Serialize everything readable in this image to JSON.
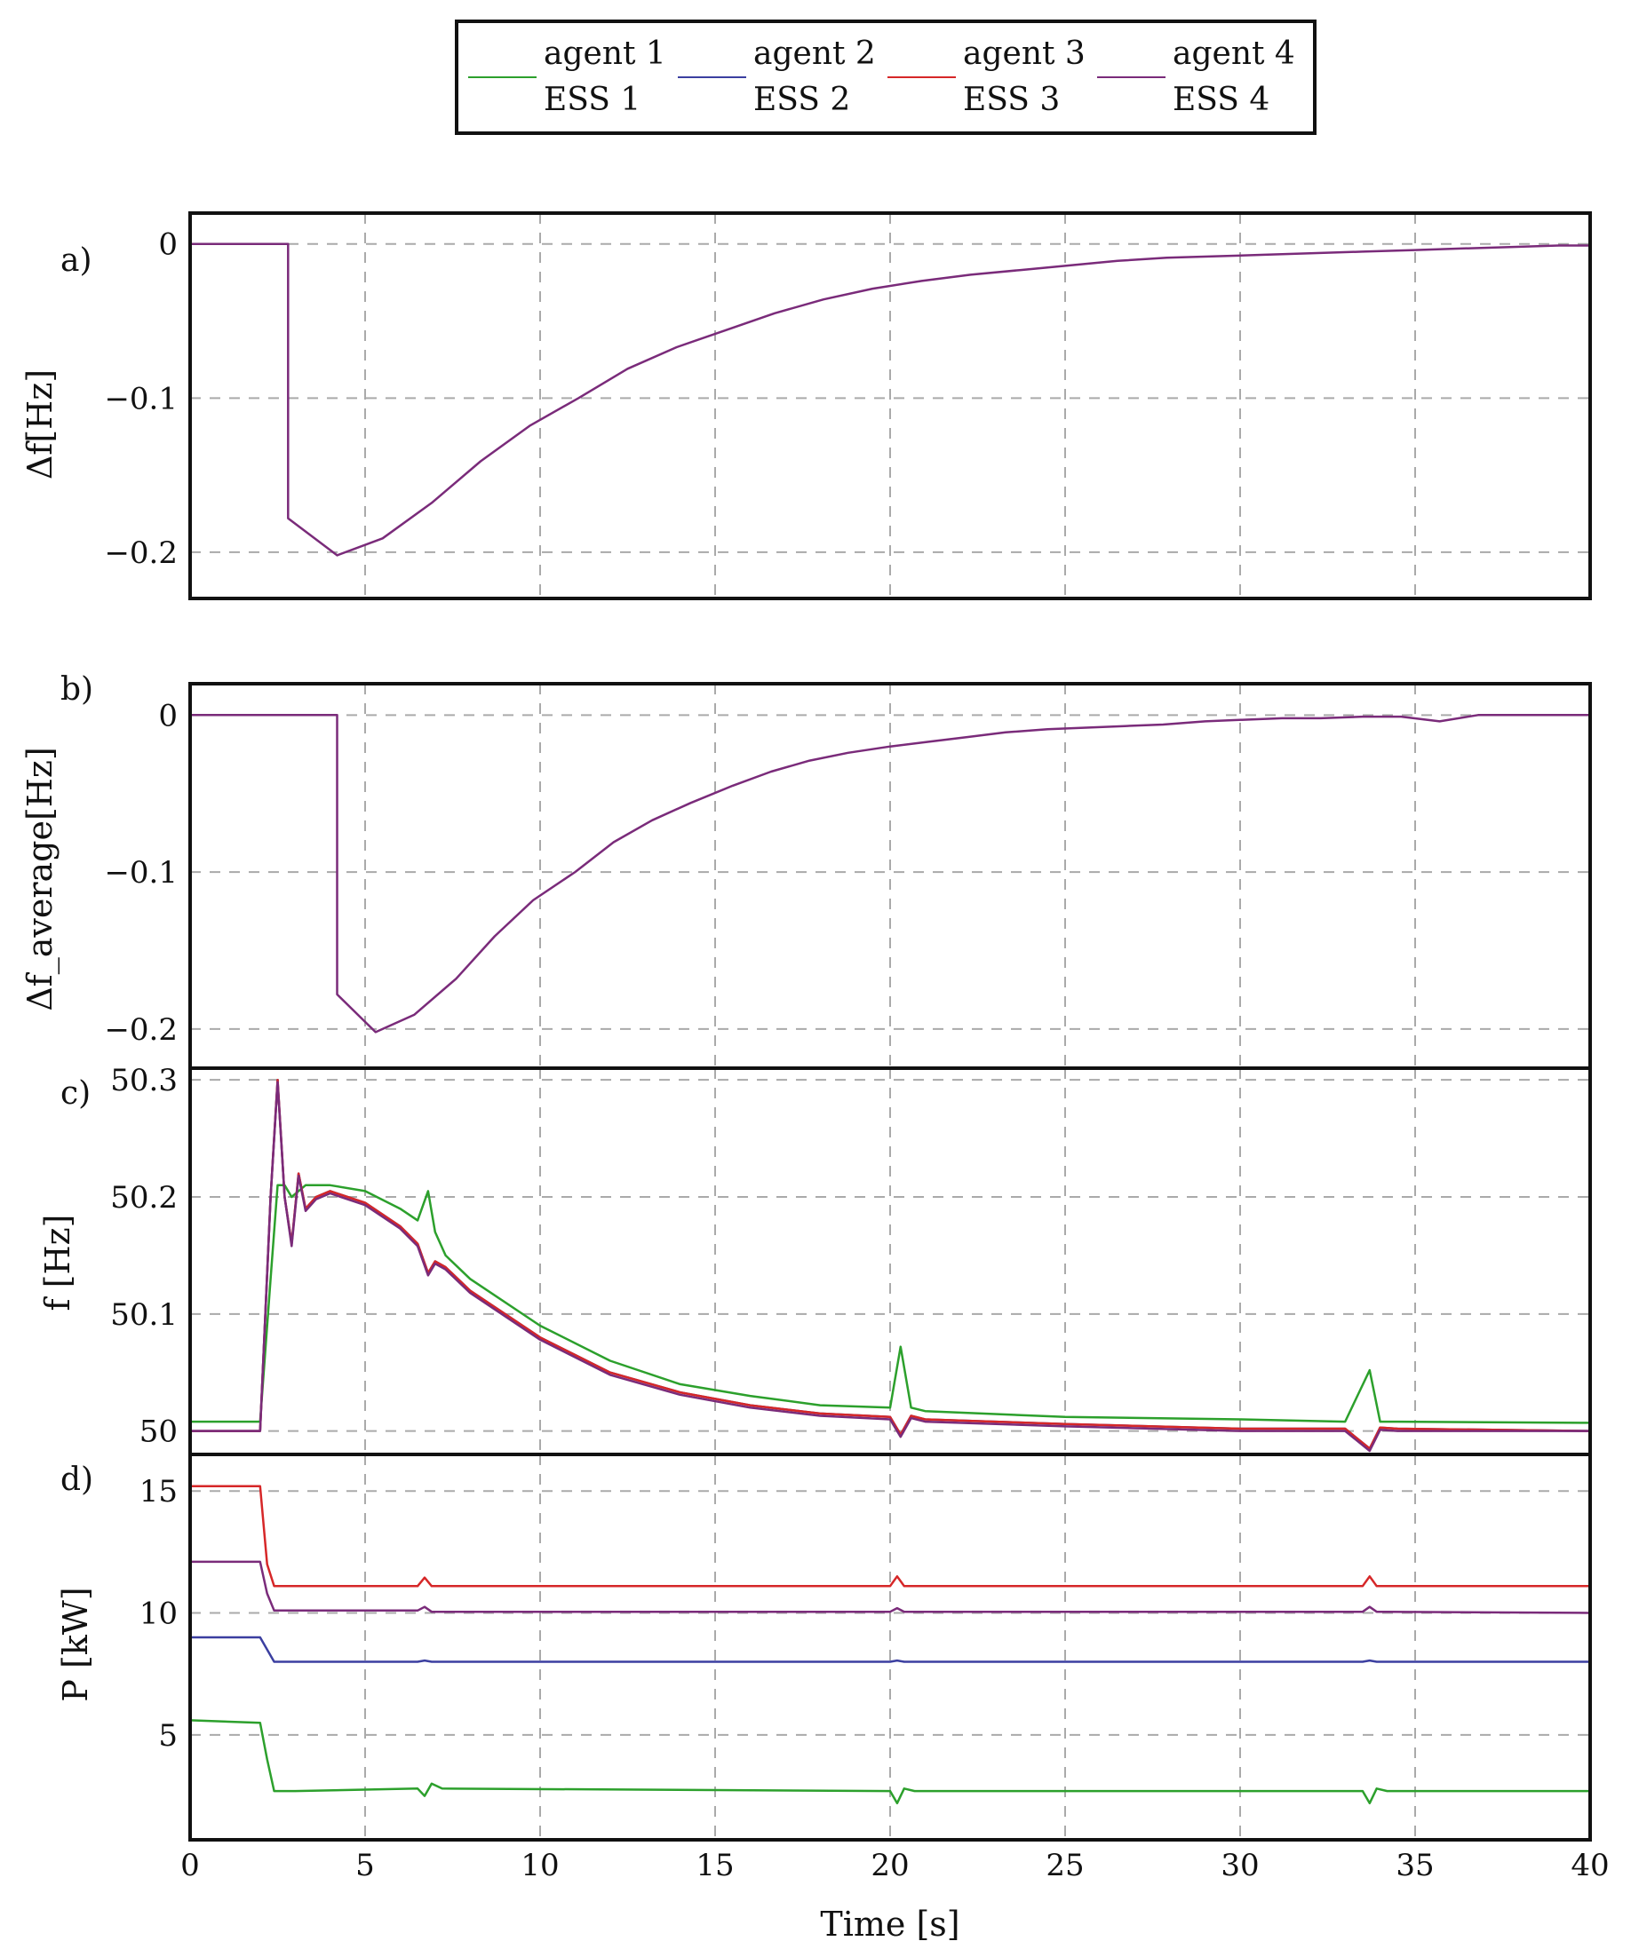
{
  "legend": {
    "entries": [
      {
        "line1": "agent 1",
        "line2": "ESS 1",
        "color": "#2ca02c"
      },
      {
        "line1": "agent 2",
        "line2": "ESS 2",
        "color": "#3b3fa0"
      },
      {
        "line1": "agent 3",
        "line2": "ESS 3",
        "color": "#d62728"
      },
      {
        "line1": "agent 4",
        "line2": "ESS 4",
        "color": "#7a2b7a"
      }
    ]
  },
  "xaxis": {
    "label": "Time [s]",
    "ticks": [
      "0",
      "5",
      "10",
      "15",
      "20",
      "25",
      "30",
      "35",
      "40"
    ]
  },
  "chart_data": [
    {
      "panel": "a)",
      "type": "line",
      "ylabel": "Δf[Hz]",
      "xlim": [
        0,
        40
      ],
      "ylim": [
        -0.23,
        0.02
      ],
      "yticks": [
        0,
        -0.1,
        -0.2
      ],
      "ytick_labels": [
        "0",
        "−0.1",
        "−0.2"
      ],
      "x": [
        0,
        2.8,
        2.8,
        4.2,
        5.5,
        6.9,
        8.3,
        9.7,
        11.1,
        12.5,
        13.9,
        15.3,
        16.7,
        18.1,
        19.5,
        20.9,
        22.3,
        23.7,
        25.1,
        26.5,
        27.9,
        29.3,
        30.7,
        32.1,
        33.5,
        34.9,
        36.3,
        37.7,
        39.1,
        40
      ],
      "series": [
        {
          "name": "agent 4",
          "values": [
            0,
            0,
            -0.178,
            -0.202,
            -0.191,
            -0.168,
            -0.141,
            -0.118,
            -0.1,
            -0.081,
            -0.067,
            -0.056,
            -0.045,
            -0.036,
            -0.029,
            -0.024,
            -0.02,
            -0.017,
            -0.014,
            -0.011,
            -0.009,
            -0.008,
            -0.007,
            -0.006,
            -0.005,
            -0.004,
            -0.003,
            -0.002,
            -0.001,
            -0.001
          ]
        }
      ]
    },
    {
      "panel": "b)",
      "type": "line",
      "ylabel": "Δf_average[Hz]",
      "xlim": [
        0,
        40
      ],
      "ylim": [
        -0.225,
        0.02
      ],
      "yticks": [
        0,
        -0.1,
        -0.2
      ],
      "ytick_labels": [
        "0",
        "−0.1",
        "−0.2"
      ],
      "x": [
        0,
        4.2,
        4.2,
        5.3,
        6.4,
        7.6,
        8.7,
        9.8,
        11.0,
        12.1,
        13.2,
        14.3,
        15.5,
        16.6,
        17.7,
        18.8,
        20.0,
        21.1,
        22.2,
        23.3,
        24.5,
        25.6,
        26.7,
        27.8,
        29.0,
        30.1,
        31.2,
        32.3,
        33.5,
        34.6,
        35.7,
        36.8,
        38.0,
        40
      ],
      "series": [
        {
          "name": "agent 4",
          "values": [
            0,
            0,
            -0.178,
            -0.202,
            -0.191,
            -0.168,
            -0.141,
            -0.118,
            -0.1,
            -0.081,
            -0.067,
            -0.056,
            -0.045,
            -0.036,
            -0.029,
            -0.024,
            -0.02,
            -0.017,
            -0.014,
            -0.011,
            -0.009,
            -0.008,
            -0.007,
            -0.006,
            -0.004,
            -0.003,
            -0.002,
            -0.002,
            -0.001,
            -0.001,
            -0.004,
            0,
            0,
            0
          ]
        }
      ]
    },
    {
      "panel": "c)",
      "type": "line",
      "ylabel": "f [Hz]",
      "xlim": [
        0,
        40
      ],
      "ylim": [
        49.98,
        50.31
      ],
      "yticks": [
        50,
        50.1,
        50.2,
        50.3
      ],
      "ytick_labels": [
        "50",
        "50.1",
        "50.2",
        "50.3"
      ],
      "x": [
        0,
        2.0,
        2.3,
        2.5,
        2.7,
        2.9,
        3.1,
        3.3,
        3.6,
        4.0,
        5.0,
        6.0,
        6.5,
        6.8,
        7.0,
        7.3,
        8.0,
        10.0,
        12.0,
        14.0,
        16.0,
        18.0,
        20.0,
        20.3,
        20.6,
        21.0,
        25.0,
        30.0,
        33.0,
        33.7,
        34.0,
        34.5,
        40.0
      ],
      "series": [
        {
          "name": "agent 1",
          "values": [
            50.008,
            50.008,
            50.13,
            50.21,
            50.21,
            50.2,
            50.205,
            50.21,
            50.21,
            50.21,
            50.205,
            50.19,
            50.18,
            50.205,
            50.17,
            50.15,
            50.13,
            50.09,
            50.06,
            50.04,
            50.03,
            50.022,
            50.02,
            50.072,
            50.02,
            50.017,
            50.012,
            50.01,
            50.008,
            50.052,
            50.008,
            50.008,
            50.007
          ]
        },
        {
          "name": "agent 2",
          "values": [
            50.0,
            50.0,
            50.2,
            50.3,
            50.2,
            50.16,
            50.22,
            50.19,
            50.2,
            50.205,
            50.195,
            50.175,
            50.16,
            50.135,
            50.145,
            50.14,
            50.12,
            50.08,
            50.05,
            50.033,
            50.022,
            50.015,
            50.012,
            49.997,
            50.013,
            50.01,
            50.006,
            50.002,
            50.002,
            49.985,
            50.003,
            50.002,
            50.0
          ]
        },
        {
          "name": "agent 3",
          "values": [
            50.0,
            50.0,
            50.2,
            50.3,
            50.2,
            50.16,
            50.22,
            50.19,
            50.2,
            50.205,
            50.195,
            50.175,
            50.16,
            50.135,
            50.145,
            50.14,
            50.12,
            50.08,
            50.05,
            50.033,
            50.022,
            50.015,
            50.012,
            49.997,
            50.013,
            50.01,
            50.006,
            50.002,
            50.002,
            49.985,
            50.003,
            50.002,
            50.0
          ]
        },
        {
          "name": "agent 4",
          "values": [
            50.0,
            50.0,
            50.2,
            50.298,
            50.2,
            50.158,
            50.218,
            50.188,
            50.198,
            50.203,
            50.193,
            50.173,
            50.158,
            50.133,
            50.143,
            50.138,
            50.118,
            50.078,
            50.048,
            50.031,
            50.02,
            50.013,
            50.01,
            49.995,
            50.011,
            50.008,
            50.004,
            50.0,
            50.0,
            49.983,
            50.001,
            50.0,
            50.0
          ]
        }
      ]
    },
    {
      "panel": "d)",
      "type": "line",
      "ylabel": "P [kW]",
      "xlim": [
        0,
        40
      ],
      "ylim": [
        0.7,
        16.5
      ],
      "yticks": [
        5,
        10,
        15
      ],
      "ytick_labels": [
        "5",
        "10",
        "15"
      ],
      "x": [
        0,
        2.0,
        2.2,
        2.4,
        3.0,
        6.5,
        6.7,
        6.9,
        7.2,
        20.0,
        20.2,
        20.4,
        20.7,
        33.5,
        33.7,
        33.9,
        34.2,
        40.0
      ],
      "series": [
        {
          "name": "ESS 1",
          "values": [
            5.6,
            5.5,
            4.0,
            2.7,
            2.7,
            2.8,
            2.5,
            3.0,
            2.8,
            2.7,
            2.2,
            2.8,
            2.7,
            2.7,
            2.2,
            2.8,
            2.7,
            2.7
          ]
        },
        {
          "name": "ESS 2",
          "values": [
            9.0,
            9.0,
            8.5,
            8.0,
            8.0,
            8.0,
            8.05,
            8.0,
            8.0,
            8.0,
            8.05,
            8.0,
            8.0,
            8.0,
            8.05,
            8.0,
            8.0,
            8.0
          ]
        },
        {
          "name": "ESS 3",
          "values": [
            15.2,
            15.2,
            12.0,
            11.1,
            11.1,
            11.1,
            11.45,
            11.1,
            11.1,
            11.1,
            11.5,
            11.1,
            11.1,
            11.1,
            11.5,
            11.1,
            11.1,
            11.1
          ]
        },
        {
          "name": "ESS 4",
          "values": [
            12.1,
            12.1,
            10.8,
            10.1,
            10.1,
            10.1,
            10.25,
            10.05,
            10.05,
            10.05,
            10.2,
            10.05,
            10.05,
            10.05,
            10.25,
            10.05,
            10.05,
            10.0
          ]
        }
      ]
    }
  ]
}
